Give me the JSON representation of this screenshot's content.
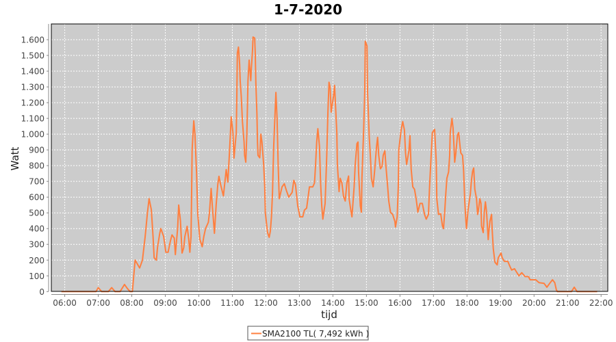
{
  "chart_data": {
    "type": "line",
    "title": "1-7-2020",
    "xlabel": "tijd",
    "ylabel": "Watt",
    "xlim": [
      "05:36",
      "22:12"
    ],
    "ylim": [
      0,
      1700
    ],
    "grid": true,
    "legend_position": "bottom",
    "background_color": "#cccccc",
    "x_ticks": [
      "06:00",
      "07:00",
      "08:00",
      "09:00",
      "10:00",
      "11:00",
      "12:00",
      "13:00",
      "14:00",
      "15:00",
      "16:00",
      "17:00",
      "18:00",
      "19:00",
      "20:00",
      "21:00",
      "22:00"
    ],
    "y_ticks": [
      {
        "value": 0,
        "label": "0"
      },
      {
        "value": 100,
        "label": "100"
      },
      {
        "value": 200,
        "label": "200"
      },
      {
        "value": 300,
        "label": "300"
      },
      {
        "value": 400,
        "label": "400"
      },
      {
        "value": 500,
        "label": "500"
      },
      {
        "value": 600,
        "label": "600"
      },
      {
        "value": 700,
        "label": "700"
      },
      {
        "value": 800,
        "label": "800"
      },
      {
        "value": 900,
        "label": "900"
      },
      {
        "value": 1000,
        "label": "1.000"
      },
      {
        "value": 1100,
        "label": "1.100"
      },
      {
        "value": 1200,
        "label": "1.200"
      },
      {
        "value": 1300,
        "label": "1.300"
      },
      {
        "value": 1400,
        "label": "1.400"
      },
      {
        "value": 1500,
        "label": "1.500"
      },
      {
        "value": 1600,
        "label": "1.600"
      }
    ],
    "series": [
      {
        "name": "SMA2100 TL( 7,492 kWh )",
        "color": "#ff7f3f",
        "points": [
          [
            "05:54",
            0
          ],
          [
            "06:56",
            0
          ],
          [
            "07:00",
            25
          ],
          [
            "07:06",
            0
          ],
          [
            "07:18",
            0
          ],
          [
            "07:24",
            25
          ],
          [
            "07:30",
            0
          ],
          [
            "07:39",
            0
          ],
          [
            "07:47",
            45
          ],
          [
            "07:52",
            20
          ],
          [
            "07:57",
            0
          ],
          [
            "08:01",
            0
          ],
          [
            "08:06",
            200
          ],
          [
            "08:14",
            150
          ],
          [
            "08:19",
            200
          ],
          [
            "08:24",
            350
          ],
          [
            "08:28",
            500
          ],
          [
            "08:31",
            590
          ],
          [
            "08:35",
            520
          ],
          [
            "08:38",
            350
          ],
          [
            "08:40",
            215
          ],
          [
            "08:44",
            200
          ],
          [
            "08:46",
            280
          ],
          [
            "08:50",
            370
          ],
          [
            "08:52",
            400
          ],
          [
            "08:57",
            350
          ],
          [
            "09:01",
            250
          ],
          [
            "09:05",
            250
          ],
          [
            "09:09",
            320
          ],
          [
            "09:12",
            360
          ],
          [
            "09:16",
            340
          ],
          [
            "09:18",
            235
          ],
          [
            "09:22",
            400
          ],
          [
            "09:24",
            550
          ],
          [
            "09:27",
            450
          ],
          [
            "09:30",
            245
          ],
          [
            "09:33",
            280
          ],
          [
            "09:35",
            350
          ],
          [
            "09:39",
            415
          ],
          [
            "09:42",
            330
          ],
          [
            "09:44",
            250
          ],
          [
            "09:46",
            350
          ],
          [
            "09:47",
            600
          ],
          [
            "09:48",
            900
          ],
          [
            "09:51",
            1085
          ],
          [
            "09:53",
            1000
          ],
          [
            "09:56",
            750
          ],
          [
            "09:58",
            495
          ],
          [
            "10:02",
            330
          ],
          [
            "10:06",
            285
          ],
          [
            "10:09",
            350
          ],
          [
            "10:12",
            400
          ],
          [
            "10:17",
            440
          ],
          [
            "10:19",
            500
          ],
          [
            "10:22",
            655
          ],
          [
            "10:24",
            550
          ],
          [
            "10:28",
            370
          ],
          [
            "10:31",
            550
          ],
          [
            "10:34",
            680
          ],
          [
            "10:36",
            732
          ],
          [
            "10:39",
            680
          ],
          [
            "10:44",
            608
          ],
          [
            "10:49",
            775
          ],
          [
            "10:52",
            695
          ],
          [
            "10:55",
            894
          ],
          [
            "10:58",
            1110
          ],
          [
            "11:01",
            1010
          ],
          [
            "11:03",
            848
          ],
          [
            "11:07",
            1010
          ],
          [
            "11:08",
            1240
          ],
          [
            "11:09",
            1515
          ],
          [
            "11:11",
            1553
          ],
          [
            "11:13",
            1445
          ],
          [
            "11:14",
            1340
          ],
          [
            "11:16",
            1240
          ],
          [
            "11:18",
            1080
          ],
          [
            "11:21",
            950
          ],
          [
            "11:22",
            865
          ],
          [
            "11:24",
            822
          ],
          [
            "11:26",
            1010
          ],
          [
            "11:27",
            1167
          ],
          [
            "11:28",
            1340
          ],
          [
            "11:30",
            1470
          ],
          [
            "11:33",
            1340
          ],
          [
            "11:34",
            1415
          ],
          [
            "11:36",
            1530
          ],
          [
            "11:37",
            1617
          ],
          [
            "11:40",
            1610
          ],
          [
            "11:41",
            1515
          ],
          [
            "11:42",
            1328
          ],
          [
            "11:44",
            1125
          ],
          [
            "11:45",
            950
          ],
          [
            "11:46",
            865
          ],
          [
            "11:49",
            850
          ],
          [
            "11:51",
            1000
          ],
          [
            "11:53",
            950
          ],
          [
            "11:56",
            808
          ],
          [
            "11:58",
            665
          ],
          [
            "11:59",
            504
          ],
          [
            "12:02",
            405
          ],
          [
            "12:03",
            375
          ],
          [
            "12:06",
            345
          ],
          [
            "12:08",
            384
          ],
          [
            "12:10",
            475
          ],
          [
            "12:12",
            635
          ],
          [
            "12:14",
            923
          ],
          [
            "12:18",
            1265
          ],
          [
            "12:20",
            1100
          ],
          [
            "12:22",
            808
          ],
          [
            "12:24",
            590
          ],
          [
            "12:29",
            665
          ],
          [
            "12:33",
            685
          ],
          [
            "12:37",
            640
          ],
          [
            "12:41",
            600
          ],
          [
            "12:47",
            630
          ],
          [
            "12:50",
            707
          ],
          [
            "12:53",
            680
          ],
          [
            "12:57",
            545
          ],
          [
            "13:01",
            475
          ],
          [
            "13:06",
            475
          ],
          [
            "13:09",
            518
          ],
          [
            "13:13",
            530
          ],
          [
            "13:18",
            665
          ],
          [
            "13:24",
            665
          ],
          [
            "13:27",
            690
          ],
          [
            "13:29",
            808
          ],
          [
            "13:31",
            950
          ],
          [
            "13:33",
            1035
          ],
          [
            "13:36",
            920
          ],
          [
            "13:38",
            690
          ],
          [
            "13:40",
            545
          ],
          [
            "13:42",
            460
          ],
          [
            "13:46",
            560
          ],
          [
            "13:49",
            866
          ],
          [
            "13:51",
            1140
          ],
          [
            "13:53",
            1330
          ],
          [
            "13:55",
            1300
          ],
          [
            "13:57",
            1140
          ],
          [
            "14:01",
            1240
          ],
          [
            "14:03",
            1310
          ],
          [
            "14:07",
            1010
          ],
          [
            "14:08",
            808
          ],
          [
            "14:11",
            635
          ],
          [
            "14:13",
            720
          ],
          [
            "14:16",
            690
          ],
          [
            "14:19",
            605
          ],
          [
            "14:22",
            575
          ],
          [
            "14:25",
            690
          ],
          [
            "14:28",
            734
          ],
          [
            "14:29",
            590
          ],
          [
            "14:32",
            518
          ],
          [
            "14:34",
            475
          ],
          [
            "14:38",
            665
          ],
          [
            "14:40",
            808
          ],
          [
            "14:43",
            940
          ],
          [
            "14:45",
            950
          ],
          [
            "14:46",
            760
          ],
          [
            "14:49",
            545
          ],
          [
            "14:51",
            504
          ],
          [
            "14:52",
            720
          ],
          [
            "14:55",
            1025
          ],
          [
            "14:57",
            1270
          ],
          [
            "14:58",
            1590
          ],
          [
            "15:01",
            1560
          ],
          [
            "15:02",
            1270
          ],
          [
            "15:05",
            980
          ],
          [
            "15:07",
            866
          ],
          [
            "15:09",
            720
          ],
          [
            "15:12",
            665
          ],
          [
            "15:15",
            780
          ],
          [
            "15:18",
            920
          ],
          [
            "15:20",
            980
          ],
          [
            "15:22",
            866
          ],
          [
            "15:25",
            780
          ],
          [
            "15:28",
            795
          ],
          [
            "15:30",
            866
          ],
          [
            "15:33",
            894
          ],
          [
            "15:35",
            795
          ],
          [
            "15:38",
            665
          ],
          [
            "15:40",
            575
          ],
          [
            "15:43",
            504
          ],
          [
            "15:47",
            490
          ],
          [
            "15:51",
            445
          ],
          [
            "15:52",
            410
          ],
          [
            "15:55",
            475
          ],
          [
            "15:57",
            665
          ],
          [
            "15:58",
            900
          ],
          [
            "16:02",
            1025
          ],
          [
            "16:05",
            1080
          ],
          [
            "16:08",
            1025
          ],
          [
            "16:10",
            880
          ],
          [
            "16:12",
            808
          ],
          [
            "16:16",
            894
          ],
          [
            "16:18",
            990
          ],
          [
            "16:20",
            780
          ],
          [
            "16:23",
            665
          ],
          [
            "16:26",
            650
          ],
          [
            "16:29",
            590
          ],
          [
            "16:32",
            504
          ],
          [
            "16:36",
            560
          ],
          [
            "16:40",
            560
          ],
          [
            "16:44",
            490
          ],
          [
            "16:47",
            460
          ],
          [
            "16:51",
            490
          ],
          [
            "16:53",
            665
          ],
          [
            "16:56",
            880
          ],
          [
            "16:58",
            1010
          ],
          [
            "17:02",
            1030
          ],
          [
            "17:05",
            822
          ],
          [
            "17:06",
            590
          ],
          [
            "17:09",
            490
          ],
          [
            "17:13",
            495
          ],
          [
            "17:16",
            418
          ],
          [
            "17:18",
            400
          ],
          [
            "17:20",
            505
          ],
          [
            "17:22",
            620
          ],
          [
            "17:24",
            720
          ],
          [
            "17:27",
            760
          ],
          [
            "17:29",
            865
          ],
          [
            "17:30",
            1010
          ],
          [
            "17:33",
            1100
          ],
          [
            "17:35",
            1040
          ],
          [
            "17:37",
            907
          ],
          [
            "17:38",
            822
          ],
          [
            "17:40",
            880
          ],
          [
            "17:43",
            995
          ],
          [
            "17:45",
            1010
          ],
          [
            "17:48",
            907
          ],
          [
            "17:49",
            880
          ],
          [
            "17:52",
            865
          ],
          [
            "17:54",
            765
          ],
          [
            "17:56",
            575
          ],
          [
            "17:58",
            447
          ],
          [
            "17:59",
            400
          ],
          [
            "18:02",
            520
          ],
          [
            "18:06",
            620
          ],
          [
            "18:08",
            707
          ],
          [
            "18:10",
            765
          ],
          [
            "18:12",
            785
          ],
          [
            "18:14",
            650
          ],
          [
            "18:17",
            590
          ],
          [
            "18:19",
            490
          ],
          [
            "18:20",
            505
          ],
          [
            "18:23",
            590
          ],
          [
            "18:25",
            560
          ],
          [
            "18:26",
            418
          ],
          [
            "18:29",
            375
          ],
          [
            "18:31",
            505
          ],
          [
            "18:33",
            570
          ],
          [
            "18:35",
            505
          ],
          [
            "18:38",
            330
          ],
          [
            "18:39",
            375
          ],
          [
            "18:41",
            447
          ],
          [
            "18:44",
            490
          ],
          [
            "18:45",
            400
          ],
          [
            "18:47",
            273
          ],
          [
            "18:50",
            187
          ],
          [
            "18:54",
            170
          ],
          [
            "18:56",
            215
          ],
          [
            "19:01",
            245
          ],
          [
            "19:03",
            215
          ],
          [
            "19:07",
            192
          ],
          [
            "19:13",
            192
          ],
          [
            "19:17",
            158
          ],
          [
            "19:20",
            137
          ],
          [
            "19:25",
            145
          ],
          [
            "19:33",
            100
          ],
          [
            "19:38",
            120
          ],
          [
            "19:44",
            95
          ],
          [
            "19:50",
            95
          ],
          [
            "19:53",
            75
          ],
          [
            "20:03",
            75
          ],
          [
            "20:09",
            57
          ],
          [
            "20:18",
            52
          ],
          [
            "20:23",
            28
          ],
          [
            "20:28",
            52
          ],
          [
            "20:33",
            75
          ],
          [
            "20:37",
            57
          ],
          [
            "20:40",
            10
          ],
          [
            "20:42",
            0
          ],
          [
            "21:07",
            0
          ],
          [
            "21:12",
            28
          ],
          [
            "21:17",
            0
          ],
          [
            "21:53",
            0
          ]
        ]
      }
    ]
  }
}
